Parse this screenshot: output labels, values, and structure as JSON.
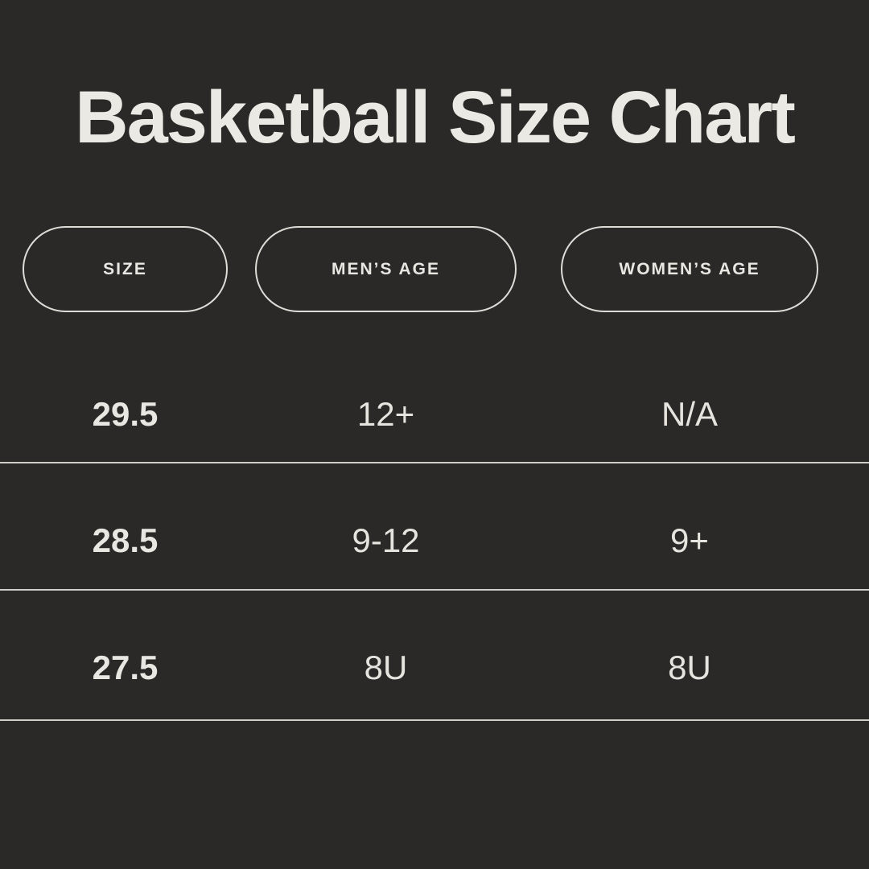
{
  "title": "Basketball Size Chart",
  "styles": {
    "background_color": "#2a2928",
    "text_color": "#e8e6e0",
    "divider_color": "#d0cec8",
    "pill_border_color": "#dedcd6"
  },
  "chart_data": {
    "type": "table",
    "title": "Basketball Size Chart",
    "columns": [
      "SIZE",
      "MEN’S AGE",
      "WOMEN’S AGE"
    ],
    "rows": [
      [
        "29.5",
        "12+",
        "N/A"
      ],
      [
        "28.5",
        "9-12",
        "9+"
      ],
      [
        "27.5",
        "8U",
        "8U"
      ]
    ],
    "layout": {
      "header_style": "outlined-pill",
      "row_dividers": true,
      "grid": "horizontal-lines-only"
    }
  }
}
